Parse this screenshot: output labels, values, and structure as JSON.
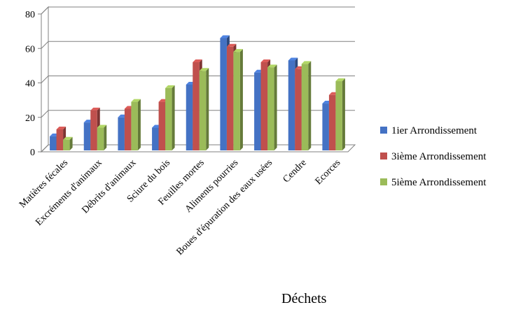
{
  "chart_data": {
    "type": "bar",
    "xlabel": "Déchets",
    "ylabel": "",
    "ylim": [
      0,
      80
    ],
    "yticks": [
      0,
      20,
      40,
      60,
      80
    ],
    "grid": true,
    "legend_position": "right",
    "categories": [
      "Matières fécales",
      "Excréments d'animaux",
      "Débrits d'animaux",
      "Sciure du bois",
      "Feuilles mortes",
      "Aliments pourries",
      "Boues d'épuration des eaux usées",
      "Cendre",
      "Ecorces"
    ],
    "series": [
      {
        "name": "1ier Arrondissement",
        "color": "#4472C4",
        "values": [
          9,
          17,
          20,
          14,
          39,
          66,
          46,
          53,
          28
        ]
      },
      {
        "name": "3ième  Arrondissement",
        "color": "#C0504D",
        "values": [
          13,
          24,
          25,
          29,
          52,
          61,
          52,
          48,
          33
        ]
      },
      {
        "name": "5ième Arrondissement",
        "color": "#9BBB59",
        "values": [
          7,
          14,
          29,
          37,
          47,
          58,
          49,
          51,
          41
        ]
      }
    ]
  }
}
